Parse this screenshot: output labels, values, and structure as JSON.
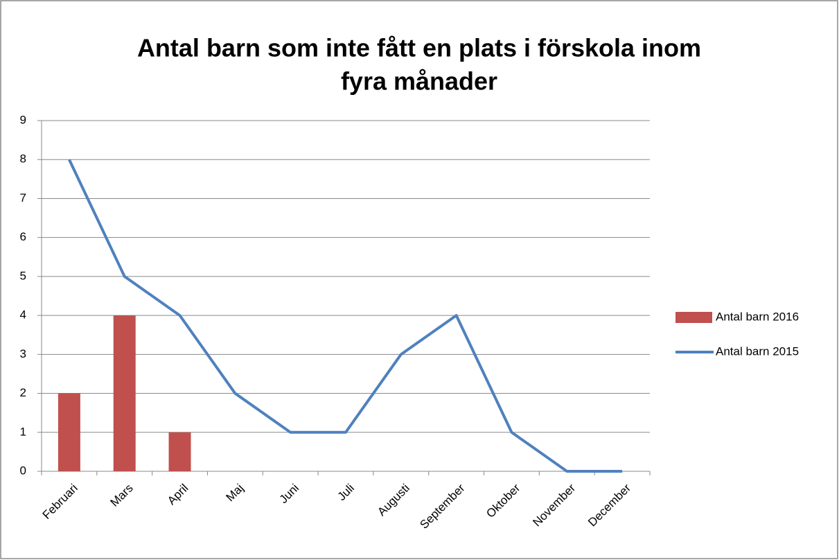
{
  "chart_data": {
    "type": "combo",
    "title": [
      "Antal barn som inte fått en plats i förskola inom",
      "fyra månader"
    ],
    "categories": [
      "Februari",
      "Mars",
      "April",
      "Maj",
      "Juni",
      "Juli",
      "Augusti",
      "September",
      "Oktober",
      "November",
      "December"
    ],
    "series": [
      {
        "name": "Antal barn 2016",
        "type": "bar",
        "color": "#c0504d",
        "values": [
          2,
          4,
          1,
          null,
          null,
          null,
          null,
          null,
          null,
          null,
          null
        ]
      },
      {
        "name": "Antal barn 2015",
        "type": "line",
        "color": "#4f81bd",
        "values": [
          8,
          5,
          4,
          2,
          1,
          1,
          3,
          4,
          1,
          0,
          0
        ]
      }
    ],
    "ylim": [
      0,
      9
    ],
    "yticks": [
      0,
      1,
      2,
      3,
      4,
      5,
      6,
      7,
      8,
      9
    ],
    "grid": true,
    "legend": "right"
  }
}
